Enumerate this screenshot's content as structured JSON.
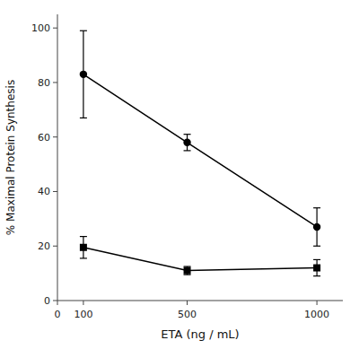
{
  "chart_data": {
    "type": "line",
    "x": [
      100,
      500,
      1000
    ],
    "xlabel": "ETA (ng / mL)",
    "ylabel": "% Maximal Protein Synthesis",
    "xlim": [
      0,
      1100
    ],
    "ylim": [
      0,
      105
    ],
    "xticks": [
      0,
      100,
      500,
      1000
    ],
    "yticks": [
      0,
      20,
      40,
      60,
      80,
      100
    ],
    "grid": false,
    "series": [
      {
        "color": "#000000",
        "marker": "circle",
        "line_style": "solid",
        "values": [
          83,
          58,
          27
        ],
        "errors": [
          16,
          3,
          7
        ]
      },
      {
        "color": "#000000",
        "marker": "square",
        "line_style": "solid",
        "values": [
          19.5,
          11,
          12
        ],
        "errors": [
          4,
          1.5,
          3
        ]
      }
    ]
  }
}
